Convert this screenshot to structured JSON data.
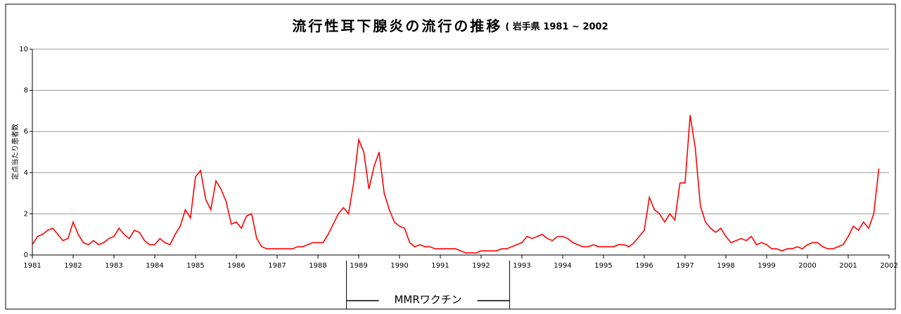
{
  "chart_data": {
    "type": "line",
    "title": "流行性耳下腺炎の流行の推移",
    "subtitle": "( 岩手県 1981 ~ 2002",
    "ylabel": "定点当たり患者数",
    "annotation": "MMRワクチン",
    "annotation_range": [
      1988.7,
      1992.7
    ],
    "xlim": [
      1981,
      2002
    ],
    "xticks": [
      1981,
      1982,
      1983,
      1984,
      1985,
      1986,
      1987,
      1988,
      1989,
      1990,
      1991,
      1992,
      1993,
      1994,
      1995,
      1996,
      1997,
      1998,
      1999,
      2000,
      2001,
      2002
    ],
    "ylim": [
      0,
      10
    ],
    "yticks": [
      0,
      2,
      4,
      6,
      8,
      10
    ],
    "grid": true,
    "series": [
      {
        "name": "定点当たり患者数",
        "color": "#ff0000",
        "x": [
          1981,
          1981.125,
          1981.25,
          1981.375,
          1981.5,
          1981.625,
          1981.75,
          1981.875,
          1982,
          1982.125,
          1982.25,
          1982.375,
          1982.5,
          1982.625,
          1982.75,
          1982.875,
          1983,
          1983.125,
          1983.25,
          1983.375,
          1983.5,
          1983.625,
          1983.75,
          1983.875,
          1984,
          1984.125,
          1984.25,
          1984.375,
          1984.5,
          1984.625,
          1984.75,
          1984.875,
          1985,
          1985.125,
          1985.25,
          1985.375,
          1985.5,
          1985.625,
          1985.75,
          1985.875,
          1986,
          1986.125,
          1986.25,
          1986.375,
          1986.5,
          1986.625,
          1986.75,
          1986.875,
          1987,
          1987.125,
          1987.25,
          1987.375,
          1987.5,
          1987.625,
          1987.75,
          1987.875,
          1988,
          1988.125,
          1988.25,
          1988.375,
          1988.5,
          1988.625,
          1988.75,
          1988.875,
          1989,
          1989.125,
          1989.25,
          1989.375,
          1989.5,
          1989.625,
          1989.75,
          1989.875,
          1990,
          1990.125,
          1990.25,
          1990.375,
          1990.5,
          1990.625,
          1990.75,
          1990.875,
          1991,
          1991.125,
          1991.25,
          1991.375,
          1991.5,
          1991.625,
          1991.75,
          1991.875,
          1992,
          1992.125,
          1992.25,
          1992.375,
          1992.5,
          1992.625,
          1992.75,
          1992.875,
          1993,
          1993.125,
          1993.25,
          1993.375,
          1993.5,
          1993.625,
          1993.75,
          1993.875,
          1994,
          1994.125,
          1994.25,
          1994.375,
          1994.5,
          1994.625,
          1994.75,
          1994.875,
          1995,
          1995.125,
          1995.25,
          1995.375,
          1995.5,
          1995.625,
          1995.75,
          1995.875,
          1996,
          1996.125,
          1996.25,
          1996.375,
          1996.5,
          1996.625,
          1996.75,
          1996.875,
          1997,
          1997.125,
          1997.25,
          1997.375,
          1997.5,
          1997.625,
          1997.75,
          1997.875,
          1998,
          1998.125,
          1998.25,
          1998.375,
          1998.5,
          1998.625,
          1998.75,
          1998.875,
          1999,
          1999.125,
          1999.25,
          1999.375,
          1999.5,
          1999.625,
          1999.75,
          1999.875,
          2000,
          2000.125,
          2000.25,
          2000.375,
          2000.5,
          2000.625,
          2000.75,
          2000.875,
          2001,
          2001.125,
          2001.25,
          2001.375,
          2001.5,
          2001.625,
          2001.75
        ],
        "values": [
          0.5,
          0.9,
          1.0,
          1.2,
          1.3,
          1.0,
          0.7,
          0.8,
          1.6,
          1.0,
          0.6,
          0.5,
          0.7,
          0.5,
          0.6,
          0.8,
          0.9,
          1.3,
          1.0,
          0.8,
          1.2,
          1.1,
          0.7,
          0.5,
          0.5,
          0.8,
          0.6,
          0.5,
          1.0,
          1.4,
          2.2,
          1.8,
          3.8,
          4.1,
          2.7,
          2.2,
          3.6,
          3.2,
          2.6,
          1.5,
          1.6,
          1.3,
          1.9,
          2.0,
          0.8,
          0.4,
          0.3,
          0.3,
          0.3,
          0.3,
          0.3,
          0.3,
          0.4,
          0.4,
          0.5,
          0.6,
          0.6,
          0.6,
          1.0,
          1.5,
          2.0,
          2.3,
          2.0,
          3.5,
          5.6,
          5.0,
          3.2,
          4.3,
          5.0,
          3.0,
          2.2,
          1.6,
          1.4,
          1.3,
          0.6,
          0.4,
          0.5,
          0.4,
          0.4,
          0.3,
          0.3,
          0.3,
          0.3,
          0.3,
          0.2,
          0.1,
          0.1,
          0.1,
          0.2,
          0.2,
          0.2,
          0.2,
          0.3,
          0.3,
          0.4,
          0.5,
          0.6,
          0.9,
          0.8,
          0.9,
          1.0,
          0.8,
          0.7,
          0.9,
          0.9,
          0.8,
          0.6,
          0.5,
          0.4,
          0.4,
          0.5,
          0.4,
          0.4,
          0.4,
          0.4,
          0.5,
          0.5,
          0.4,
          0.6,
          0.9,
          1.2,
          2.8,
          2.2,
          2.0,
          1.6,
          2.0,
          1.7,
          3.5,
          3.5,
          6.8,
          5.2,
          2.4,
          1.6,
          1.3,
          1.1,
          1.3,
          0.9,
          0.6,
          0.7,
          0.8,
          0.7,
          0.9,
          0.5,
          0.6,
          0.5,
          0.3,
          0.3,
          0.2,
          0.3,
          0.3,
          0.4,
          0.3,
          0.5,
          0.6,
          0.6,
          0.4,
          0.3,
          0.3,
          0.4,
          0.5,
          0.9,
          1.4,
          1.2,
          1.6,
          1.3,
          2.0,
          4.2
        ]
      }
    ]
  }
}
